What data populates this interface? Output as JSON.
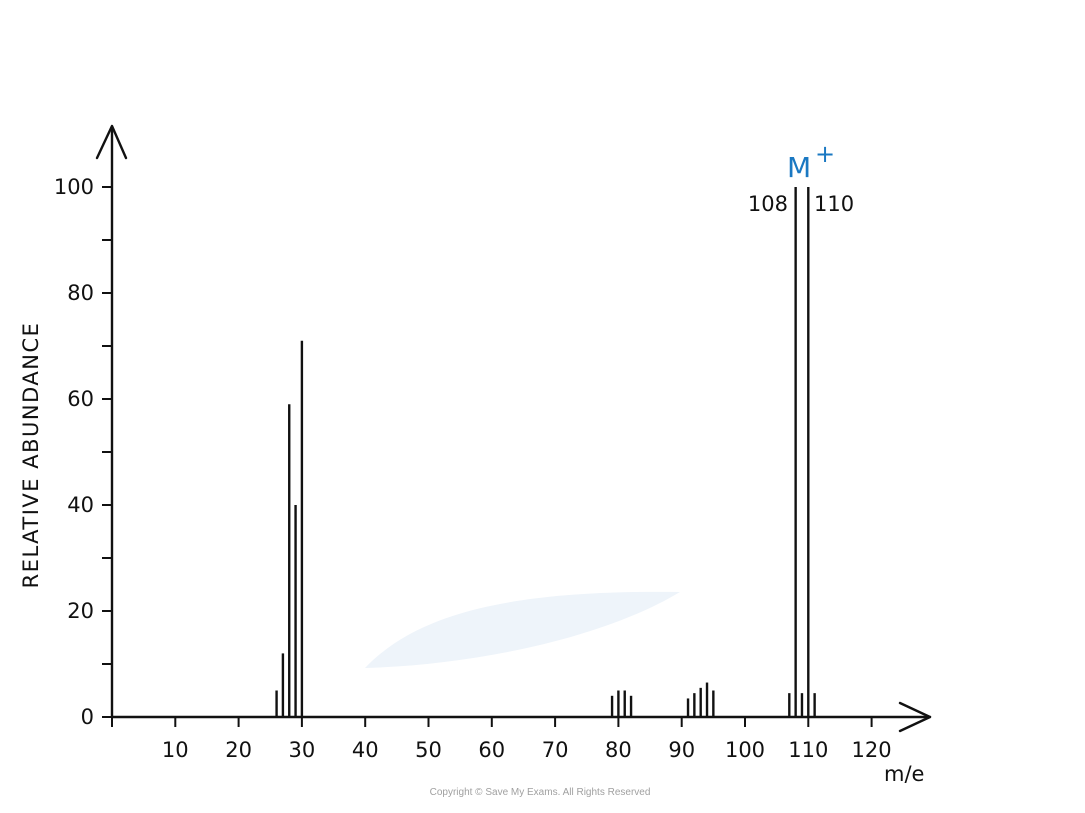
{
  "chart_data": {
    "type": "bar",
    "ylabel": "RELATIVE ABUNDANCE",
    "xlabel": "m/e",
    "xlim": [
      0,
      128
    ],
    "ylim": [
      0,
      100
    ],
    "xticks": [
      10,
      20,
      30,
      40,
      50,
      60,
      70,
      80,
      90,
      100,
      110,
      120
    ],
    "yticks": [
      0,
      20,
      40,
      60,
      80,
      100
    ],
    "x": [
      26,
      27,
      28,
      29,
      30,
      79,
      80,
      81,
      82,
      91,
      92,
      93,
      94,
      95,
      107,
      108,
      109,
      110,
      111
    ],
    "values": [
      5,
      12,
      59,
      40,
      71,
      4,
      5,
      5,
      4,
      3.5,
      4.5,
      5.5,
      6.5,
      5,
      4.5,
      100,
      4.5,
      100,
      4.5
    ],
    "annotations": [
      {
        "label": "M",
        "superscript": "+",
        "color": "#1a78c2",
        "x": 109
      },
      {
        "label": "108",
        "x": 108
      },
      {
        "label": "110",
        "x": 110
      }
    ]
  },
  "copyright": "Copyright © Save My Exams. All Rights Reserved"
}
